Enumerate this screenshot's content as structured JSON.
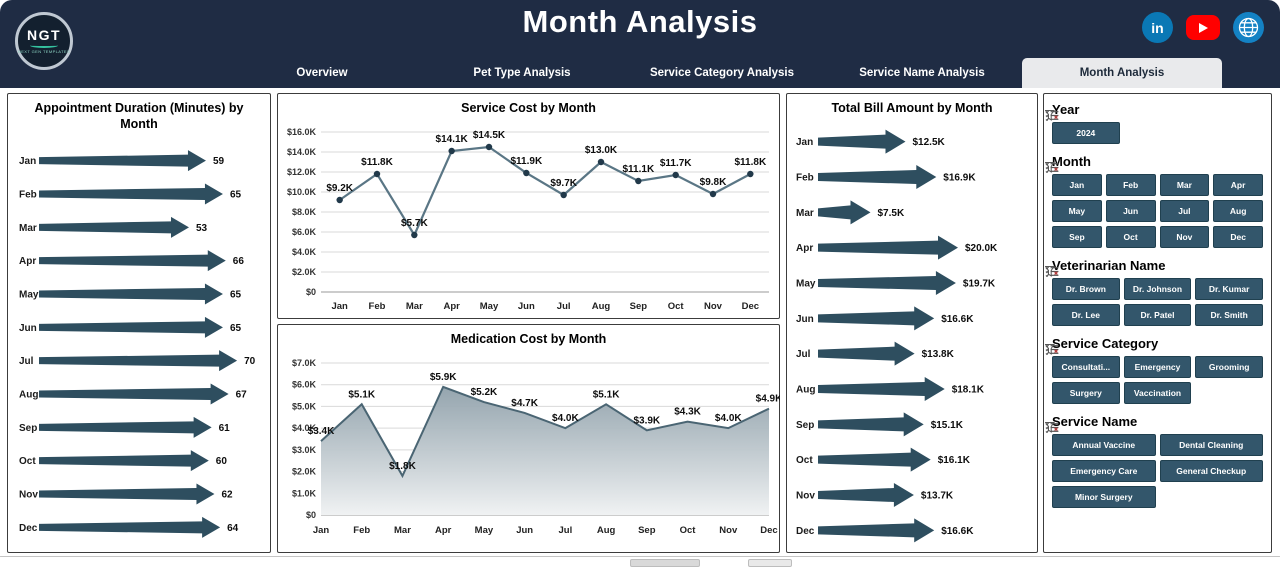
{
  "header": {
    "title": "Month Analysis",
    "logo": {
      "brand": "NGT",
      "tagline": "NEXT GEN TEMPLATES"
    },
    "social": [
      {
        "name": "linkedin",
        "glyph": "in",
        "color": "#0a78b5"
      },
      {
        "name": "youtube",
        "color": "#ff0000"
      },
      {
        "name": "website",
        "color": "#1482c4"
      }
    ],
    "tabs": [
      {
        "label": "Overview",
        "active": false
      },
      {
        "label": "Pet Type Analysis",
        "active": false
      },
      {
        "label": "Service Category Analysis",
        "active": false
      },
      {
        "label": "Service Name Analysis",
        "active": false
      },
      {
        "label": "Month Analysis",
        "active": true
      }
    ]
  },
  "colors": {
    "header_bg": "#1f2c44",
    "active_tab_bg": "#e9eaec",
    "accent": "#2e4e5f",
    "line": "#5a7685",
    "marker": "#21394a",
    "area_line": "#4a6573",
    "area_top": "#8fa0aa",
    "area_bottom": "#f0f2f3",
    "gridline": "#d9d9d9",
    "axis": "#9a9a9a",
    "button_bg": "#33566b"
  },
  "chart_data": [
    {
      "type": "bar",
      "orientation": "horizontal",
      "marker_style": "arrow",
      "title": "Appointment Duration (Minutes) by Month",
      "categories": [
        "Jan",
        "Feb",
        "Mar",
        "Apr",
        "May",
        "Jun",
        "Jul",
        "Aug",
        "Sep",
        "Oct",
        "Nov",
        "Dec"
      ],
      "values": [
        59,
        65,
        53,
        66,
        65,
        65,
        70,
        67,
        61,
        60,
        62,
        64
      ],
      "labels": [
        "59",
        "65",
        "53",
        "66",
        "65",
        "65",
        "70",
        "67",
        "61",
        "60",
        "62",
        "64"
      ],
      "xlim": [
        0,
        70
      ],
      "grid": false,
      "legend": false
    },
    {
      "type": "line",
      "title": "Service Cost by Month",
      "categories": [
        "Jan",
        "Feb",
        "Mar",
        "Apr",
        "May",
        "Jun",
        "Jul",
        "Aug",
        "Sep",
        "Oct",
        "Nov",
        "Dec"
      ],
      "values": [
        9.2,
        11.8,
        5.7,
        14.1,
        14.5,
        11.9,
        9.7,
        13.0,
        11.1,
        11.7,
        9.8,
        11.8
      ],
      "value_unit": "K USD",
      "labels": [
        "$9.2K",
        "$11.8K",
        "$5.7K",
        "$14.1K",
        "$14.5K",
        "$11.9K",
        "$9.7K",
        "$13.0K",
        "$11.1K",
        "$11.7K",
        "$9.8K",
        "$11.8K"
      ],
      "yticks": [
        "$0",
        "$2.0K",
        "$4.0K",
        "$6.0K",
        "$8.0K",
        "$10.0K",
        "$12.0K",
        "$14.0K",
        "$16.0K"
      ],
      "ylim": [
        0,
        16
      ],
      "grid": true,
      "legend": false
    },
    {
      "type": "area",
      "title": "Medication Cost by Month",
      "categories": [
        "Jan",
        "Feb",
        "Mar",
        "Apr",
        "May",
        "Jun",
        "Jul",
        "Aug",
        "Sep",
        "Oct",
        "Nov",
        "Dec"
      ],
      "values": [
        3.4,
        5.1,
        1.8,
        5.9,
        5.2,
        4.7,
        4.0,
        5.1,
        3.9,
        4.3,
        4.0,
        4.9
      ],
      "value_unit": "K USD",
      "labels": [
        "$3.4K",
        "$5.1K",
        "$1.8K",
        "$5.9K",
        "$5.2K",
        "$4.7K",
        "$4.0K",
        "$5.1K",
        "$3.9K",
        "$4.3K",
        "$4.0K",
        "$4.9K"
      ],
      "yticks": [
        "$0",
        "$1.0K",
        "$2.0K",
        "$3.0K",
        "$4.0K",
        "$5.0K",
        "$6.0K",
        "$7.0K"
      ],
      "ylim": [
        0,
        7
      ],
      "grid": true,
      "legend": false
    },
    {
      "type": "bar",
      "orientation": "horizontal",
      "marker_style": "arrow",
      "title": "Total Bill Amount by Month",
      "categories": [
        "Jan",
        "Feb",
        "Mar",
        "Apr",
        "May",
        "Jun",
        "Jul",
        "Aug",
        "Sep",
        "Oct",
        "Nov",
        "Dec"
      ],
      "values": [
        12.5,
        16.9,
        7.5,
        20.0,
        19.7,
        16.6,
        13.8,
        18.1,
        15.1,
        16.1,
        13.7,
        16.6
      ],
      "value_unit": "K USD",
      "labels": [
        "$12.5K",
        "$16.9K",
        "$7.5K",
        "$20.0K",
        "$19.7K",
        "$16.6K",
        "$13.8K",
        "$18.1K",
        "$15.1K",
        "$16.1K",
        "$13.7K",
        "$16.6K"
      ],
      "xlim": [
        0,
        20
      ],
      "grid": false,
      "legend": false
    }
  ],
  "filters": {
    "sections": [
      {
        "title": "Year",
        "cols": 3,
        "icons": [
          "multiselect-icon",
          "clear-filter-icon"
        ],
        "options": [
          "2024"
        ]
      },
      {
        "title": "Month",
        "cols": 4,
        "icons": [
          "multiselect-icon",
          "clear-filter-icon"
        ],
        "options": [
          "Jan",
          "Feb",
          "Mar",
          "Apr",
          "May",
          "Jun",
          "Jul",
          "Aug",
          "Sep",
          "Oct",
          "Nov",
          "Dec"
        ]
      },
      {
        "title": "Veterinarian Name",
        "cols": 3,
        "icons": [
          "multiselect-icon",
          "clear-filter-icon"
        ],
        "options": [
          "Dr. Brown",
          "Dr. Johnson",
          "Dr. Kumar",
          "Dr. Lee",
          "Dr. Patel",
          "Dr. Smith"
        ]
      },
      {
        "title": "Service Category",
        "cols": 3,
        "icons": [
          "multiselect-icon",
          "clear-filter-icon"
        ],
        "options": [
          "Consultati...",
          "Emergency",
          "Grooming",
          "Surgery",
          "Vaccination"
        ]
      },
      {
        "title": "Service Name",
        "cols": 2,
        "icons": [
          "multiselect-icon",
          "clear-filter-icon"
        ],
        "options": [
          "Annual Vaccine",
          "Dental Cleaning",
          "Emergency Care",
          "General Checkup",
          "Minor Surgery"
        ]
      }
    ]
  }
}
